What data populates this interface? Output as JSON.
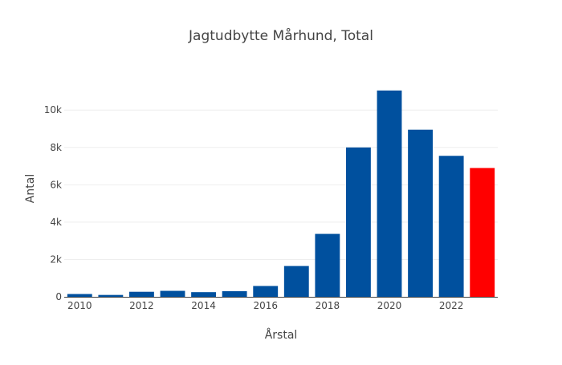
{
  "chart_data": {
    "type": "bar",
    "title": "Jagtudbytte Mårhund, Total",
    "xlabel": "Årstal",
    "ylabel": "Antal",
    "x": [
      2010,
      2011,
      2012,
      2013,
      2014,
      2015,
      2016,
      2017,
      2018,
      2019,
      2020,
      2021,
      2022,
      2023
    ],
    "values": [
      150,
      100,
      270,
      320,
      250,
      300,
      580,
      1650,
      3370,
      8000,
      11050,
      8950,
      7550,
      6900
    ],
    "bar_colors": [
      "#00509e",
      "#00509e",
      "#00509e",
      "#00509e",
      "#00509e",
      "#00509e",
      "#00509e",
      "#00509e",
      "#00509e",
      "#00509e",
      "#00509e",
      "#00509e",
      "#00509e",
      "#ff0000"
    ],
    "x_ticks": [
      2010,
      2012,
      2014,
      2016,
      2018,
      2020,
      2022
    ],
    "y_ticks": [
      0,
      2000,
      4000,
      6000,
      8000,
      10000
    ],
    "y_tick_labels": [
      "0",
      "2k",
      "4k",
      "6k",
      "8k",
      "10k"
    ],
    "ylim": [
      0,
      11600
    ],
    "xlim": [
      2009.5,
      2023.5
    ],
    "grid": true,
    "legend": false
  }
}
